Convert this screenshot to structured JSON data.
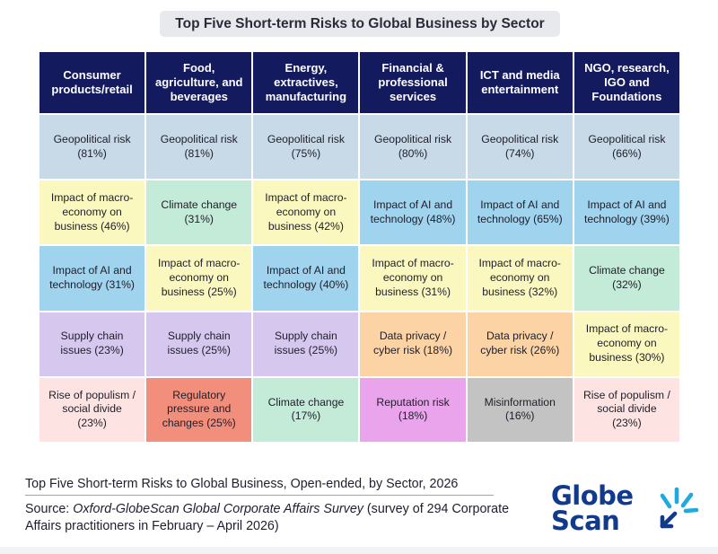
{
  "title": "Top Five Short-term Risks to Global Business by Sector",
  "headers": [
    "Consumer products/retail",
    "Food, agriculture, and beverages",
    "Energy, extractives, manufacturing",
    "Financial & professional services",
    "ICT and media entertainment",
    "NGO, research, IGO and Foundations"
  ],
  "rows": [
    [
      {
        "text": "Geopolitical risk (81%)",
        "cls": "c-geo"
      },
      {
        "text": "Geopolitical risk (81%)",
        "cls": "c-geo"
      },
      {
        "text": "Geopolitical risk (75%)",
        "cls": "c-geo"
      },
      {
        "text": "Geopolitical risk (80%)",
        "cls": "c-geo"
      },
      {
        "text": "Geopolitical risk (74%)",
        "cls": "c-geo"
      },
      {
        "text": "Geopolitical risk (66%)",
        "cls": "c-geo"
      }
    ],
    [
      {
        "text": "Impact of macro-economy on business (46%)",
        "cls": "c-macro"
      },
      {
        "text": "Climate change (31%)",
        "cls": "c-climate"
      },
      {
        "text": "Impact of macro-economy on business (42%)",
        "cls": "c-macro"
      },
      {
        "text": "Impact of AI and technology (48%)",
        "cls": "c-ai"
      },
      {
        "text": "Impact of AI and technology (65%)",
        "cls": "c-ai"
      },
      {
        "text": "Impact of AI and technology (39%)",
        "cls": "c-ai"
      }
    ],
    [
      {
        "text": "Impact of AI and technology (31%)",
        "cls": "c-ai"
      },
      {
        "text": "Impact of macro-economy on business (25%)",
        "cls": "c-macro"
      },
      {
        "text": "Impact of AI and technology (40%)",
        "cls": "c-ai"
      },
      {
        "text": "Impact of macro-economy on business (31%)",
        "cls": "c-macro"
      },
      {
        "text": "Impact of macro-economy on business (32%)",
        "cls": "c-macro"
      },
      {
        "text": "Climate change (32%)",
        "cls": "c-climate"
      }
    ],
    [
      {
        "text": "Supply chain issues (23%)",
        "cls": "c-supply"
      },
      {
        "text": "Supply chain issues (25%)",
        "cls": "c-supply"
      },
      {
        "text": "Supply chain issues (25%)",
        "cls": "c-supply"
      },
      {
        "text": "Data privacy / cyber risk (18%)",
        "cls": "c-privacy"
      },
      {
        "text": "Data privacy / cyber risk (26%)",
        "cls": "c-privacy"
      },
      {
        "text": "Impact of macro-economy on business (30%)",
        "cls": "c-macro"
      }
    ],
    [
      {
        "text": "Rise of populism / social divide (23%)",
        "cls": "c-populism"
      },
      {
        "text": "Regulatory pressure and changes (25%)",
        "cls": "c-regulatory"
      },
      {
        "text": "Climate change (17%)",
        "cls": "c-climate"
      },
      {
        "text": "Reputation risk (18%)",
        "cls": "c-reputation"
      },
      {
        "text": "Misinformation (16%)",
        "cls": "c-misinfo"
      },
      {
        "text": "Rise of populism / social divide (23%)",
        "cls": "c-populism"
      }
    ]
  ],
  "caption": "Top Five Short-term Risks to Global Business, Open-ended, by Sector, 2026",
  "source": {
    "prefix": "Source: ",
    "italic": "Oxford-GlobeScan Global Corporate Affairs Survey",
    "suffix": " (survey of 294 Corporate Affairs practitioners in February – April 2026)"
  },
  "logo": {
    "line1": "Globe",
    "line2": "Scan"
  },
  "colors": {
    "header": "#141a5e",
    "geopolitical": "#c8d9e7",
    "macro": "#fbf8bf",
    "climate": "#c4ead8",
    "ai": "#9fd3ee",
    "supply_chain": "#d6c7ee",
    "populism": "#fde3e1",
    "regulatory": "#f28e7c",
    "data_privacy": "#fbd3a5",
    "reputation": "#eaa4ec",
    "misinformation": "#c3c3c3",
    "logo": "#123a8c",
    "logo_accent": "#1fa9e1"
  }
}
